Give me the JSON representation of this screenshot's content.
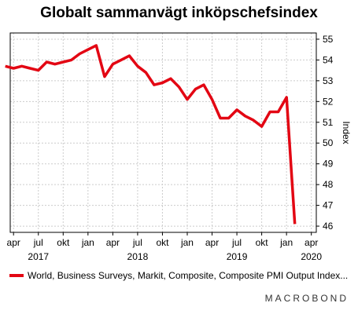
{
  "chart_data": {
    "type": "line",
    "title": "Globalt sammanvägt inköpschefsindex",
    "ylabel": "Index",
    "xlabel": "",
    "ylim": [
      45.7,
      55.3
    ],
    "yticks": [
      46,
      47,
      48,
      49,
      50,
      51,
      52,
      53,
      54,
      55
    ],
    "x_month_ticks": [
      {
        "label": "apr",
        "m": 3
      },
      {
        "label": "jul",
        "m": 6
      },
      {
        "label": "okt",
        "m": 9
      },
      {
        "label": "jan",
        "m": 12
      },
      {
        "label": "apr",
        "m": 15
      },
      {
        "label": "jul",
        "m": 18
      },
      {
        "label": "okt",
        "m": 21
      },
      {
        "label": "jan",
        "m": 24
      },
      {
        "label": "apr",
        "m": 27
      },
      {
        "label": "jul",
        "m": 30
      },
      {
        "label": "okt",
        "m": 33
      },
      {
        "label": "jan",
        "m": 36
      },
      {
        "label": "apr",
        "m": 39
      }
    ],
    "x_year_labels": [
      {
        "label": "2017",
        "m": 6
      },
      {
        "label": "2018",
        "m": 18
      },
      {
        "label": "2019",
        "m": 30
      },
      {
        "label": "2020",
        "m": 39
      }
    ],
    "series": [
      {
        "name": "World, Business Surveys, Markit, Composite, Composite PMI Output Index...",
        "color": "#e30613",
        "x": [
          "2017-03",
          "2017-04",
          "2017-05",
          "2017-06",
          "2017-07",
          "2017-08",
          "2017-09",
          "2017-10",
          "2017-11",
          "2017-12",
          "2018-01",
          "2018-02",
          "2018-03",
          "2018-04",
          "2018-05",
          "2018-06",
          "2018-07",
          "2018-08",
          "2018-09",
          "2018-10",
          "2018-11",
          "2018-12",
          "2019-01",
          "2019-02",
          "2019-03",
          "2019-04",
          "2019-05",
          "2019-06",
          "2019-07",
          "2019-08",
          "2019-09",
          "2019-10",
          "2019-11",
          "2019-12",
          "2020-01",
          "2020-02"
        ],
        "values": [
          53.7,
          53.6,
          53.7,
          53.6,
          53.5,
          53.9,
          53.8,
          53.9,
          54.0,
          54.3,
          54.5,
          54.7,
          53.2,
          53.8,
          54.0,
          54.2,
          53.7,
          53.4,
          52.8,
          52.9,
          53.1,
          52.7,
          52.1,
          52.6,
          52.8,
          52.1,
          51.2,
          51.2,
          51.6,
          51.3,
          51.1,
          50.8,
          51.5,
          51.5,
          52.2,
          46.1
        ]
      }
    ],
    "grid": true,
    "legend": "bottom"
  },
  "legend_label": "World, Business Surveys, Markit, Composite, Composite PMI Output Index...",
  "brand": "MACROBOND"
}
